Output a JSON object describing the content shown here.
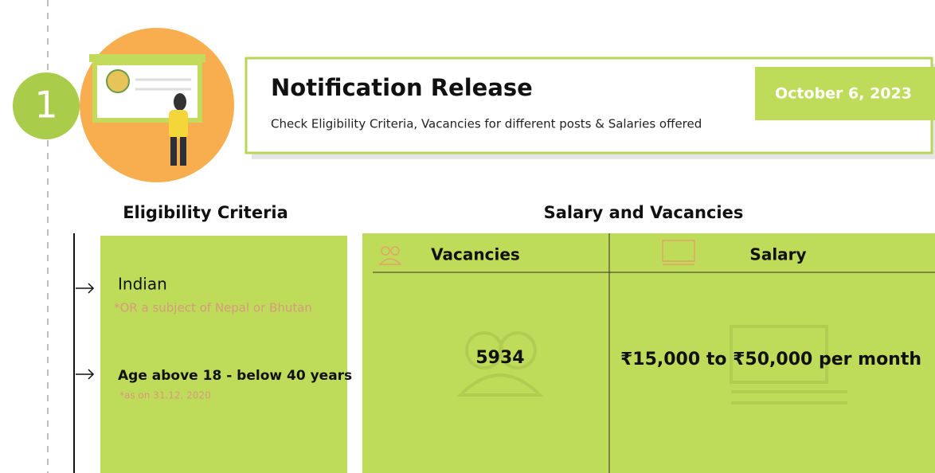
{
  "step": {
    "number": "1"
  },
  "header": {
    "title": "Notification Release",
    "subtitle": "Check Eligibility Criteria, Vacancies for different posts & Salaries offered",
    "date": "October 6, 2023"
  },
  "eligibility": {
    "title": "Eligibility Criteria",
    "items": [
      {
        "label": "Indian",
        "note": "*OR a subject of Nepal or Bhutan"
      },
      {
        "label": "Age above 18 - below 40 years",
        "note": "*as on 31.12. 2020"
      }
    ]
  },
  "salary_vacancies": {
    "title": "Salary and Vacancies",
    "table": {
      "columns": [
        "Vacancies",
        "Salary"
      ],
      "rows": [
        [
          "5934",
          "₹15,000 to ₹50,000 per month"
        ]
      ]
    }
  }
}
